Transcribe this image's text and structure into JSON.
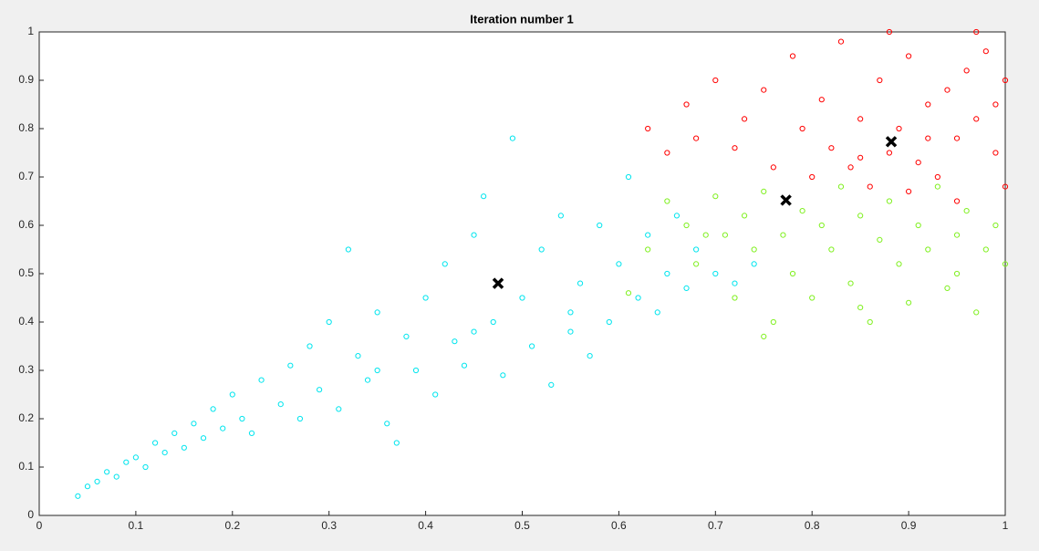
{
  "chart_data": {
    "type": "scatter",
    "title": "Iteration number 1",
    "xlim": [
      0,
      1
    ],
    "ylim": [
      0,
      1
    ],
    "xticks": [
      0,
      0.1,
      0.2,
      0.3,
      0.4,
      0.5,
      0.6,
      0.7,
      0.8,
      0.9,
      1
    ],
    "yticks": [
      0,
      0.1,
      0.2,
      0.3,
      0.4,
      0.5,
      0.6,
      0.7,
      0.8,
      0.9,
      1
    ],
    "grid": false,
    "series": [
      {
        "color": "#00e5ee",
        "marker": "o",
        "x": [
          0.04,
          0.05,
          0.06,
          0.07,
          0.08,
          0.09,
          0.1,
          0.11,
          0.12,
          0.13,
          0.14,
          0.15,
          0.16,
          0.17,
          0.18,
          0.19,
          0.2,
          0.21,
          0.22,
          0.23,
          0.25,
          0.26,
          0.27,
          0.28,
          0.29,
          0.3,
          0.31,
          0.32,
          0.33,
          0.34,
          0.35,
          0.36,
          0.37,
          0.38,
          0.39,
          0.4,
          0.41,
          0.42,
          0.43,
          0.44,
          0.45,
          0.46,
          0.47,
          0.48,
          0.49,
          0.5,
          0.51,
          0.52,
          0.53,
          0.54,
          0.55,
          0.56,
          0.57,
          0.58,
          0.59,
          0.6,
          0.61,
          0.62,
          0.63,
          0.64,
          0.65,
          0.66,
          0.67,
          0.68,
          0.7,
          0.72,
          0.74,
          0.55,
          0.45,
          0.35
        ],
        "values": [
          0.04,
          0.06,
          0.07,
          0.09,
          0.08,
          0.11,
          0.12,
          0.1,
          0.15,
          0.13,
          0.17,
          0.14,
          0.19,
          0.16,
          0.22,
          0.18,
          0.25,
          0.2,
          0.17,
          0.28,
          0.23,
          0.31,
          0.2,
          0.35,
          0.26,
          0.4,
          0.22,
          0.55,
          0.33,
          0.28,
          0.42,
          0.19,
          0.15,
          0.37,
          0.3,
          0.45,
          0.25,
          0.52,
          0.36,
          0.31,
          0.58,
          0.66,
          0.4,
          0.29,
          0.78,
          0.45,
          0.35,
          0.55,
          0.27,
          0.62,
          0.42,
          0.48,
          0.33,
          0.6,
          0.4,
          0.52,
          0.7,
          0.45,
          0.58,
          0.42,
          0.5,
          0.62,
          0.47,
          0.55,
          0.5,
          0.48,
          0.52,
          0.38,
          0.38,
          0.3
        ]
      },
      {
        "color": "#80f020",
        "marker": "o",
        "x": [
          0.61,
          0.63,
          0.65,
          0.67,
          0.68,
          0.7,
          0.71,
          0.72,
          0.73,
          0.74,
          0.75,
          0.76,
          0.77,
          0.78,
          0.79,
          0.8,
          0.81,
          0.82,
          0.83,
          0.84,
          0.85,
          0.86,
          0.87,
          0.88,
          0.89,
          0.9,
          0.91,
          0.92,
          0.93,
          0.94,
          0.95,
          0.96,
          0.97,
          0.98,
          0.99,
          1.0,
          0.75,
          0.85,
          0.95,
          0.69
        ],
        "values": [
          0.46,
          0.55,
          0.65,
          0.6,
          0.52,
          0.66,
          0.58,
          0.45,
          0.62,
          0.55,
          0.67,
          0.4,
          0.58,
          0.5,
          0.63,
          0.45,
          0.6,
          0.55,
          0.68,
          0.48,
          0.62,
          0.4,
          0.57,
          0.65,
          0.52,
          0.44,
          0.6,
          0.55,
          0.68,
          0.47,
          0.58,
          0.63,
          0.42,
          0.55,
          0.6,
          0.52,
          0.37,
          0.43,
          0.5,
          0.58
        ]
      },
      {
        "color": "#ff0000",
        "marker": "o",
        "x": [
          0.63,
          0.65,
          0.67,
          0.68,
          0.7,
          0.72,
          0.73,
          0.75,
          0.76,
          0.78,
          0.79,
          0.8,
          0.81,
          0.82,
          0.83,
          0.84,
          0.85,
          0.86,
          0.87,
          0.88,
          0.89,
          0.9,
          0.91,
          0.92,
          0.93,
          0.94,
          0.95,
          0.96,
          0.97,
          0.98,
          0.99,
          1.0,
          1.0,
          0.97,
          0.88,
          0.95,
          0.9,
          0.85,
          0.99,
          0.92
        ],
        "values": [
          0.8,
          0.75,
          0.85,
          0.78,
          0.9,
          0.76,
          0.82,
          0.88,
          0.72,
          0.95,
          0.8,
          0.7,
          0.86,
          0.76,
          0.98,
          0.72,
          0.82,
          0.68,
          0.9,
          0.75,
          0.8,
          0.95,
          0.73,
          0.85,
          0.7,
          0.88,
          0.78,
          0.92,
          0.82,
          0.96,
          0.75,
          0.9,
          0.68,
          1.0,
          1.0,
          0.65,
          0.67,
          0.74,
          0.85,
          0.78
        ]
      },
      {
        "color": "#000000",
        "marker": "x",
        "x": [
          0.475,
          0.773,
          0.882
        ],
        "values": [
          0.48,
          0.652,
          0.773
        ]
      }
    ]
  }
}
